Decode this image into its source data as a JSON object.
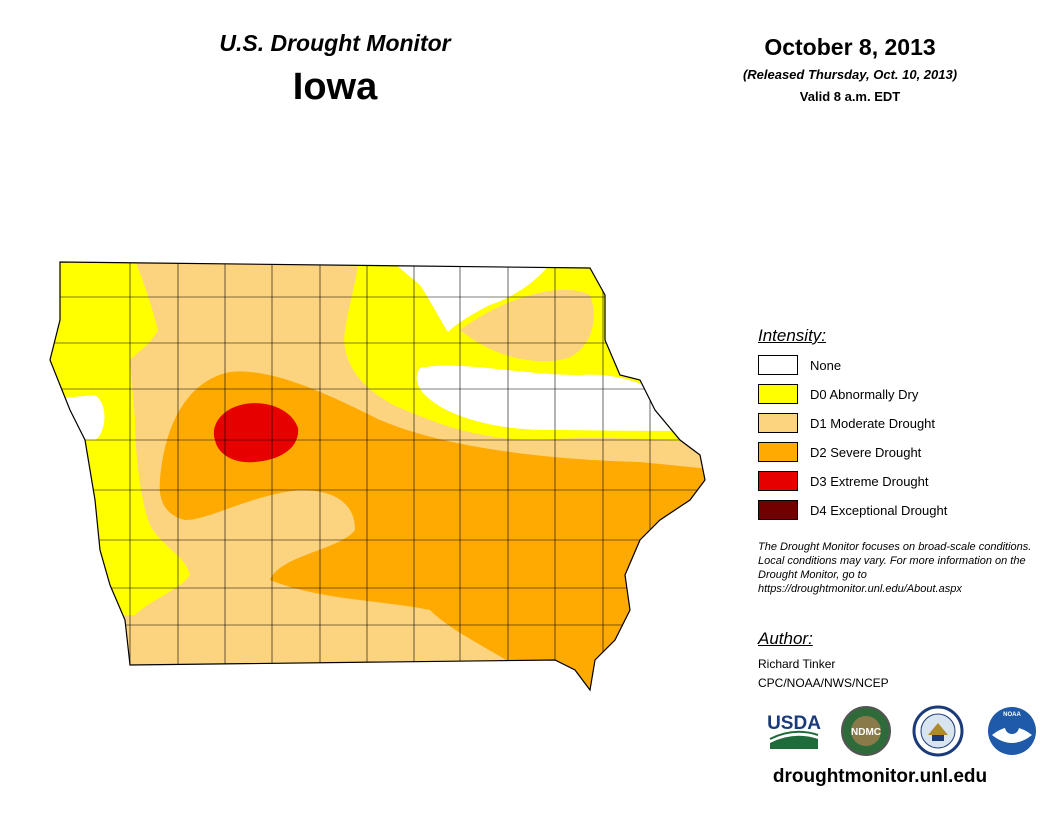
{
  "header": {
    "title": "U.S. Drought Monitor",
    "state": "Iowa",
    "date": "October 8, 2013",
    "released": "(Released Thursday, Oct. 10, 2013)",
    "valid": "Valid 8 a.m. EDT"
  },
  "legend": {
    "heading": "Intensity:",
    "items": [
      {
        "label": "None",
        "color": "#ffffff"
      },
      {
        "label": "D0 Abnormally Dry",
        "color": "#ffff00"
      },
      {
        "label": "D1 Moderate Drought",
        "color": "#fcd37f"
      },
      {
        "label": "D2 Severe Drought",
        "color": "#ffaa00"
      },
      {
        "label": "D3 Extreme Drought",
        "color": "#e60000"
      },
      {
        "label": "D4 Exceptional Drought",
        "color": "#730000"
      }
    ]
  },
  "note": "The Drought Monitor focuses on broad-scale conditions. Local conditions may vary. For more information on the Drought Monitor, go to https://droughtmonitor.unl.edu/About.aspx",
  "author": {
    "heading": "Author:",
    "name": "Richard Tinker",
    "org": "CPC/NOAA/NWS/NCEP"
  },
  "logos": {
    "usda": "USDA",
    "ndmc": "NDMC",
    "noaa": "NOAA"
  },
  "website": "droughtmonitor.unl.edu"
}
